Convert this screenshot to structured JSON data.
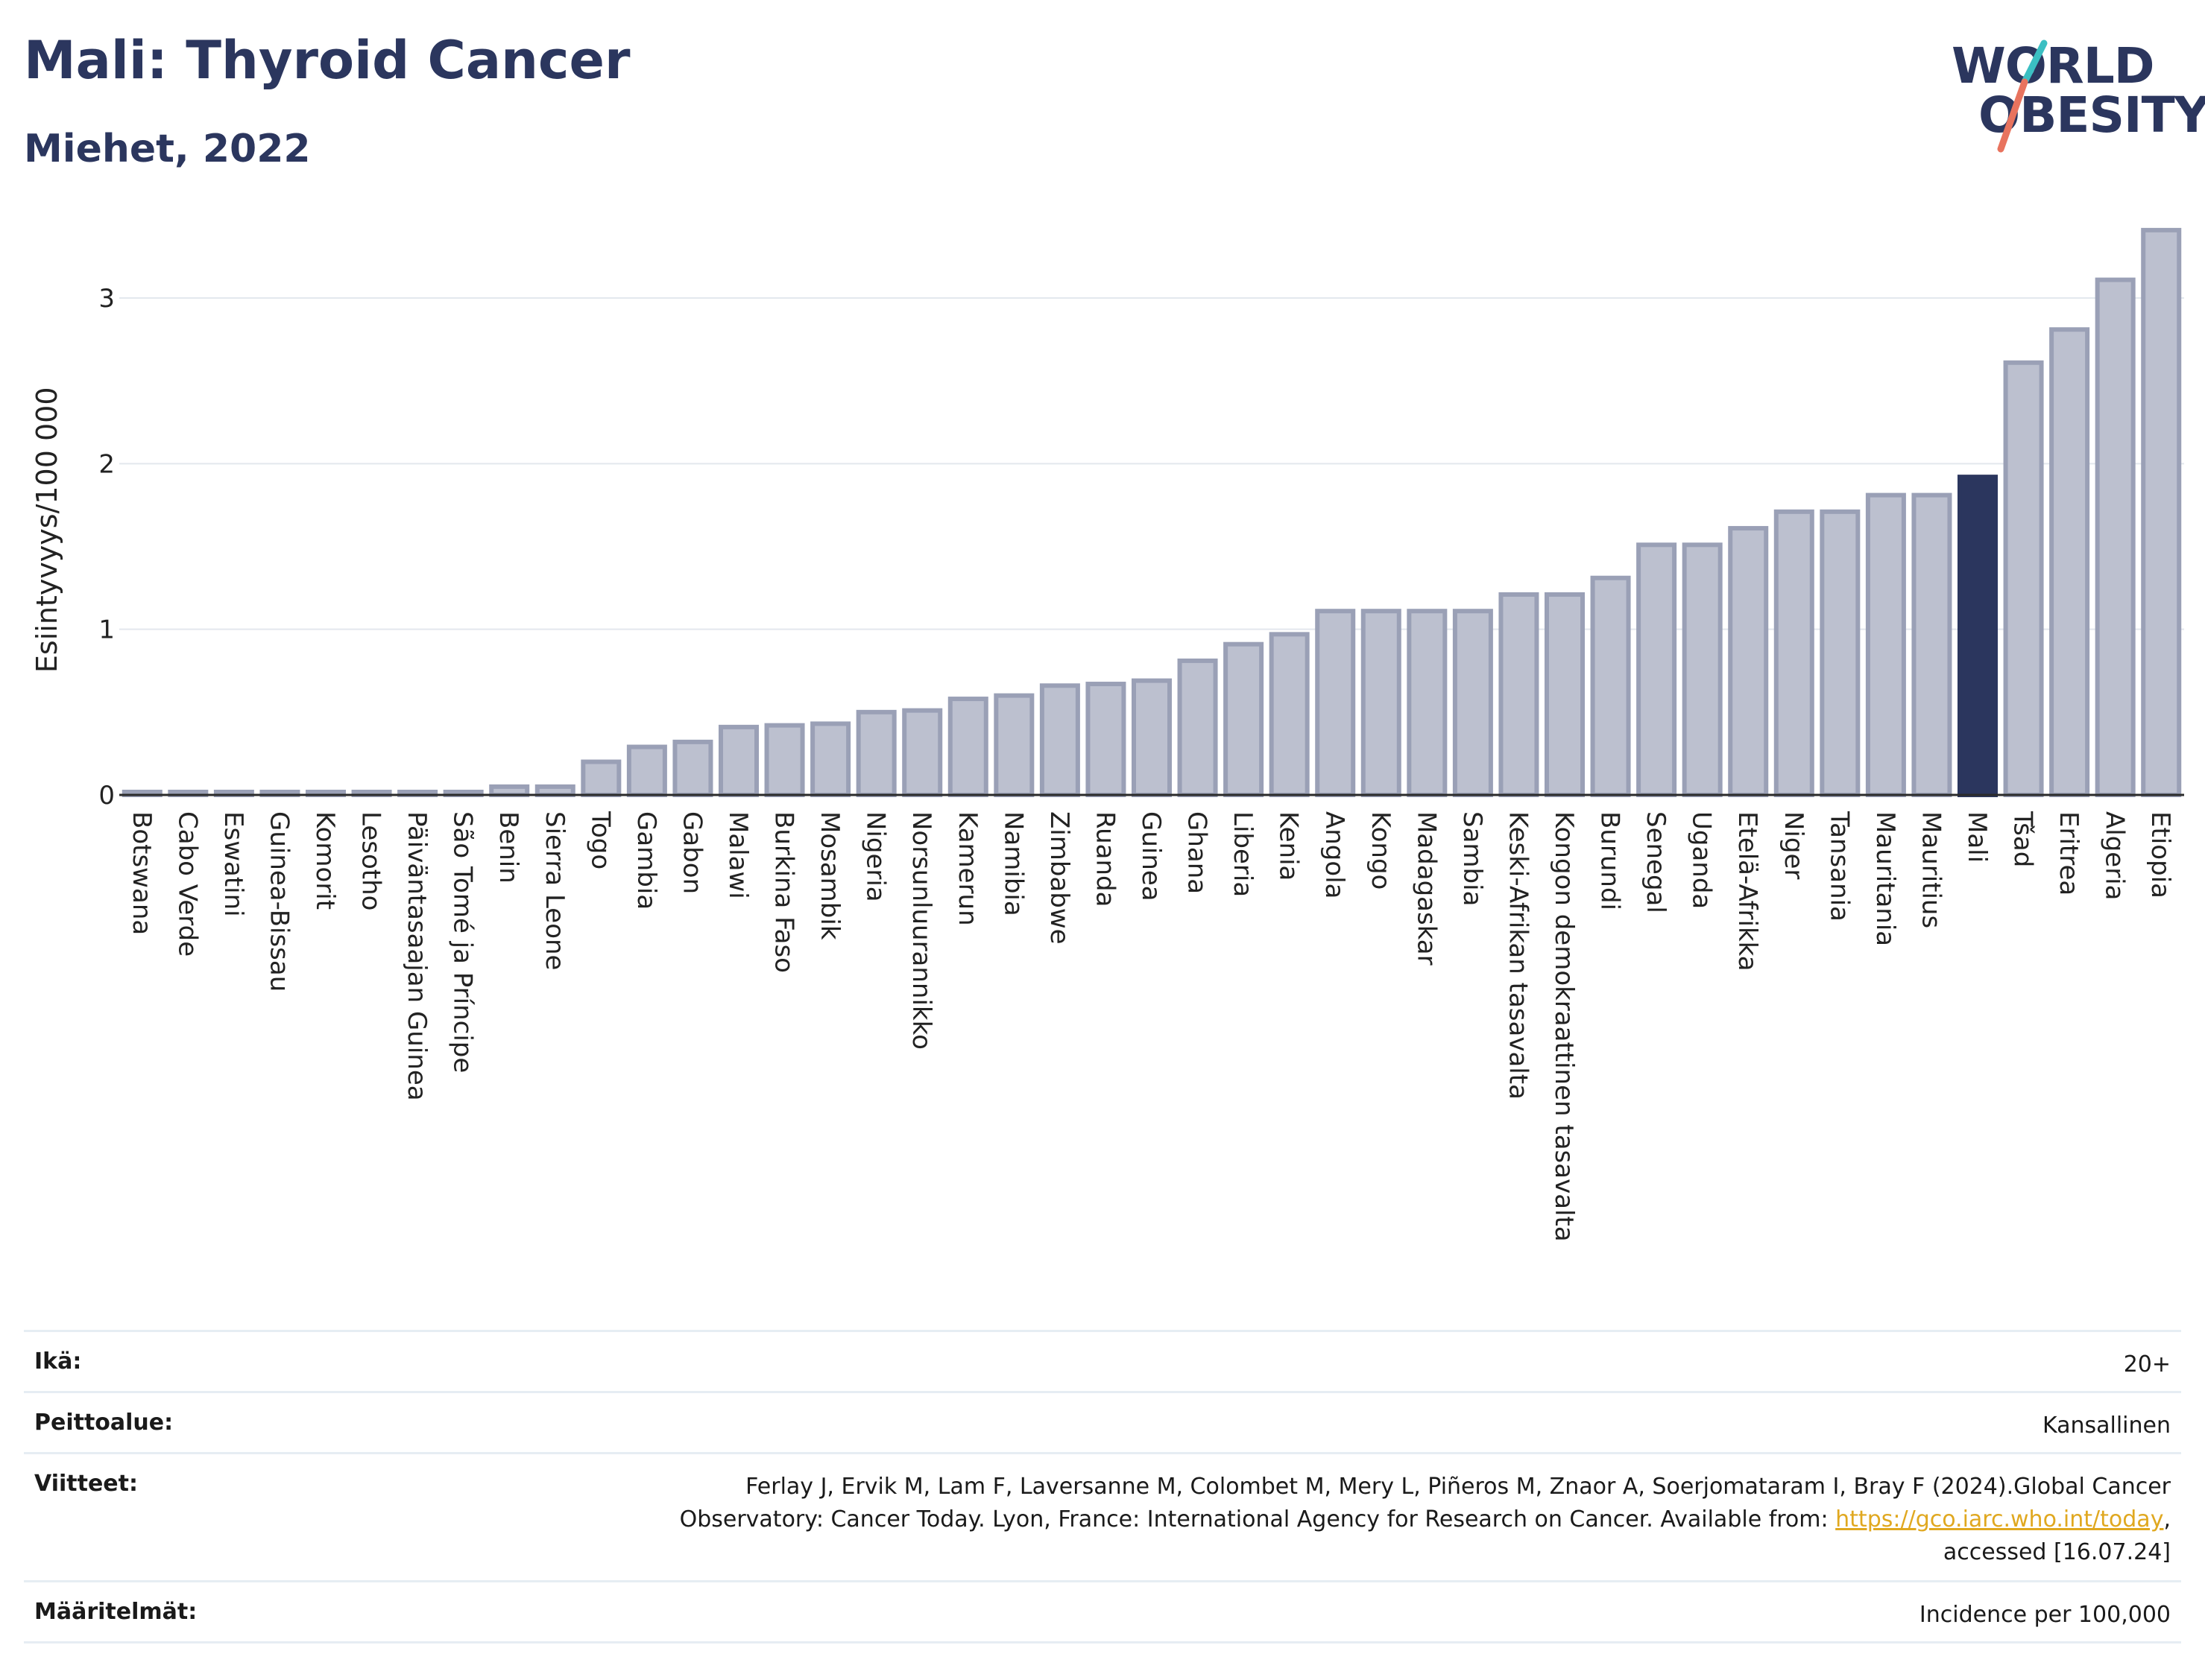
{
  "header": {
    "title": "Mali: Thyroid Cancer",
    "subtitle": "Miehet, 2022",
    "logo_line1": "WORLD",
    "logo_line2": "OBESITY"
  },
  "colors": {
    "highlight": "#2b365e",
    "bar_fill": "#bcc0cf",
    "bar_stroke": "#9aa0b6",
    "logo_teal": "#3bbfc2",
    "logo_coral": "#e8735e",
    "link": "#e0a820"
  },
  "chart_data": {
    "type": "bar",
    "title": "Mali: Thyroid Cancer",
    "subtitle": "Miehet, 2022",
    "ylabel": "Esiintyvyys/100 000",
    "xlabel": "",
    "ylim": [
      0,
      3.45
    ],
    "yticks": [
      0,
      1,
      2,
      3
    ],
    "grid": true,
    "highlight": "Mali",
    "categories": [
      "Botswana",
      "Cabo Verde",
      "Eswatini",
      "Guinea-Bissau",
      "Komorit",
      "Lesotho",
      "Päiväntasaajan Guinea",
      "São Tomé ja Príncipe",
      "Benin",
      "Sierra Leone",
      "Togo",
      "Gambia",
      "Gabon",
      "Malawi",
      "Burkina Faso",
      "Mosambik",
      "Nigeria",
      "Norsunluurannikko",
      "Kamerun",
      "Namibia",
      "Zimbabwe",
      "Ruanda",
      "Guinea",
      "Ghana",
      "Liberia",
      "Kenia",
      "Angola",
      "Kongo",
      "Madagaskar",
      "Sambia",
      "Keski-Afrikan tasavalta",
      "Kongon demokraattinen tasavalta",
      "Burundi",
      "Senegal",
      "Uganda",
      "Etelä-Afrikka",
      "Niger",
      "Tansania",
      "Mauritania",
      "Mauritius",
      "Mali",
      "Tšad",
      "Eritrea",
      "Algeria",
      "Etiopia"
    ],
    "values": [
      0.01,
      0.01,
      0.01,
      0.01,
      0.01,
      0.01,
      0.01,
      0.01,
      0.05,
      0.05,
      0.2,
      0.29,
      0.32,
      0.41,
      0.42,
      0.43,
      0.5,
      0.51,
      0.58,
      0.6,
      0.66,
      0.67,
      0.69,
      0.81,
      0.91,
      0.97,
      1.11,
      1.11,
      1.11,
      1.11,
      1.21,
      1.21,
      1.31,
      1.51,
      1.51,
      1.61,
      1.71,
      1.71,
      1.81,
      1.81,
      1.92,
      2.61,
      2.81,
      3.11,
      3.41
    ]
  },
  "meta": {
    "age_label": "Ikä:",
    "age_value": "20+",
    "coverage_label": "Peittoalue:",
    "coverage_value": "Kansallinen",
    "refs_label": "Viitteet:",
    "refs_line1": "Ferlay J, Ervik M, Lam F, Laversanne M, Colombet M, Mery L, Piñeros M, Znaor A, Soerjomataram I, Bray F (2024).Global Cancer",
    "refs_line2_pre": "Observatory: Cancer Today. Lyon, France: International Agency for Research on Cancer. Available from: ",
    "refs_link": "https://gco.iarc.who.int/today",
    "refs_line2_post": ",",
    "refs_line3": "accessed [16.07.24]",
    "defs_label": "Määritelmät:",
    "defs_value": "Incidence per 100,000"
  }
}
